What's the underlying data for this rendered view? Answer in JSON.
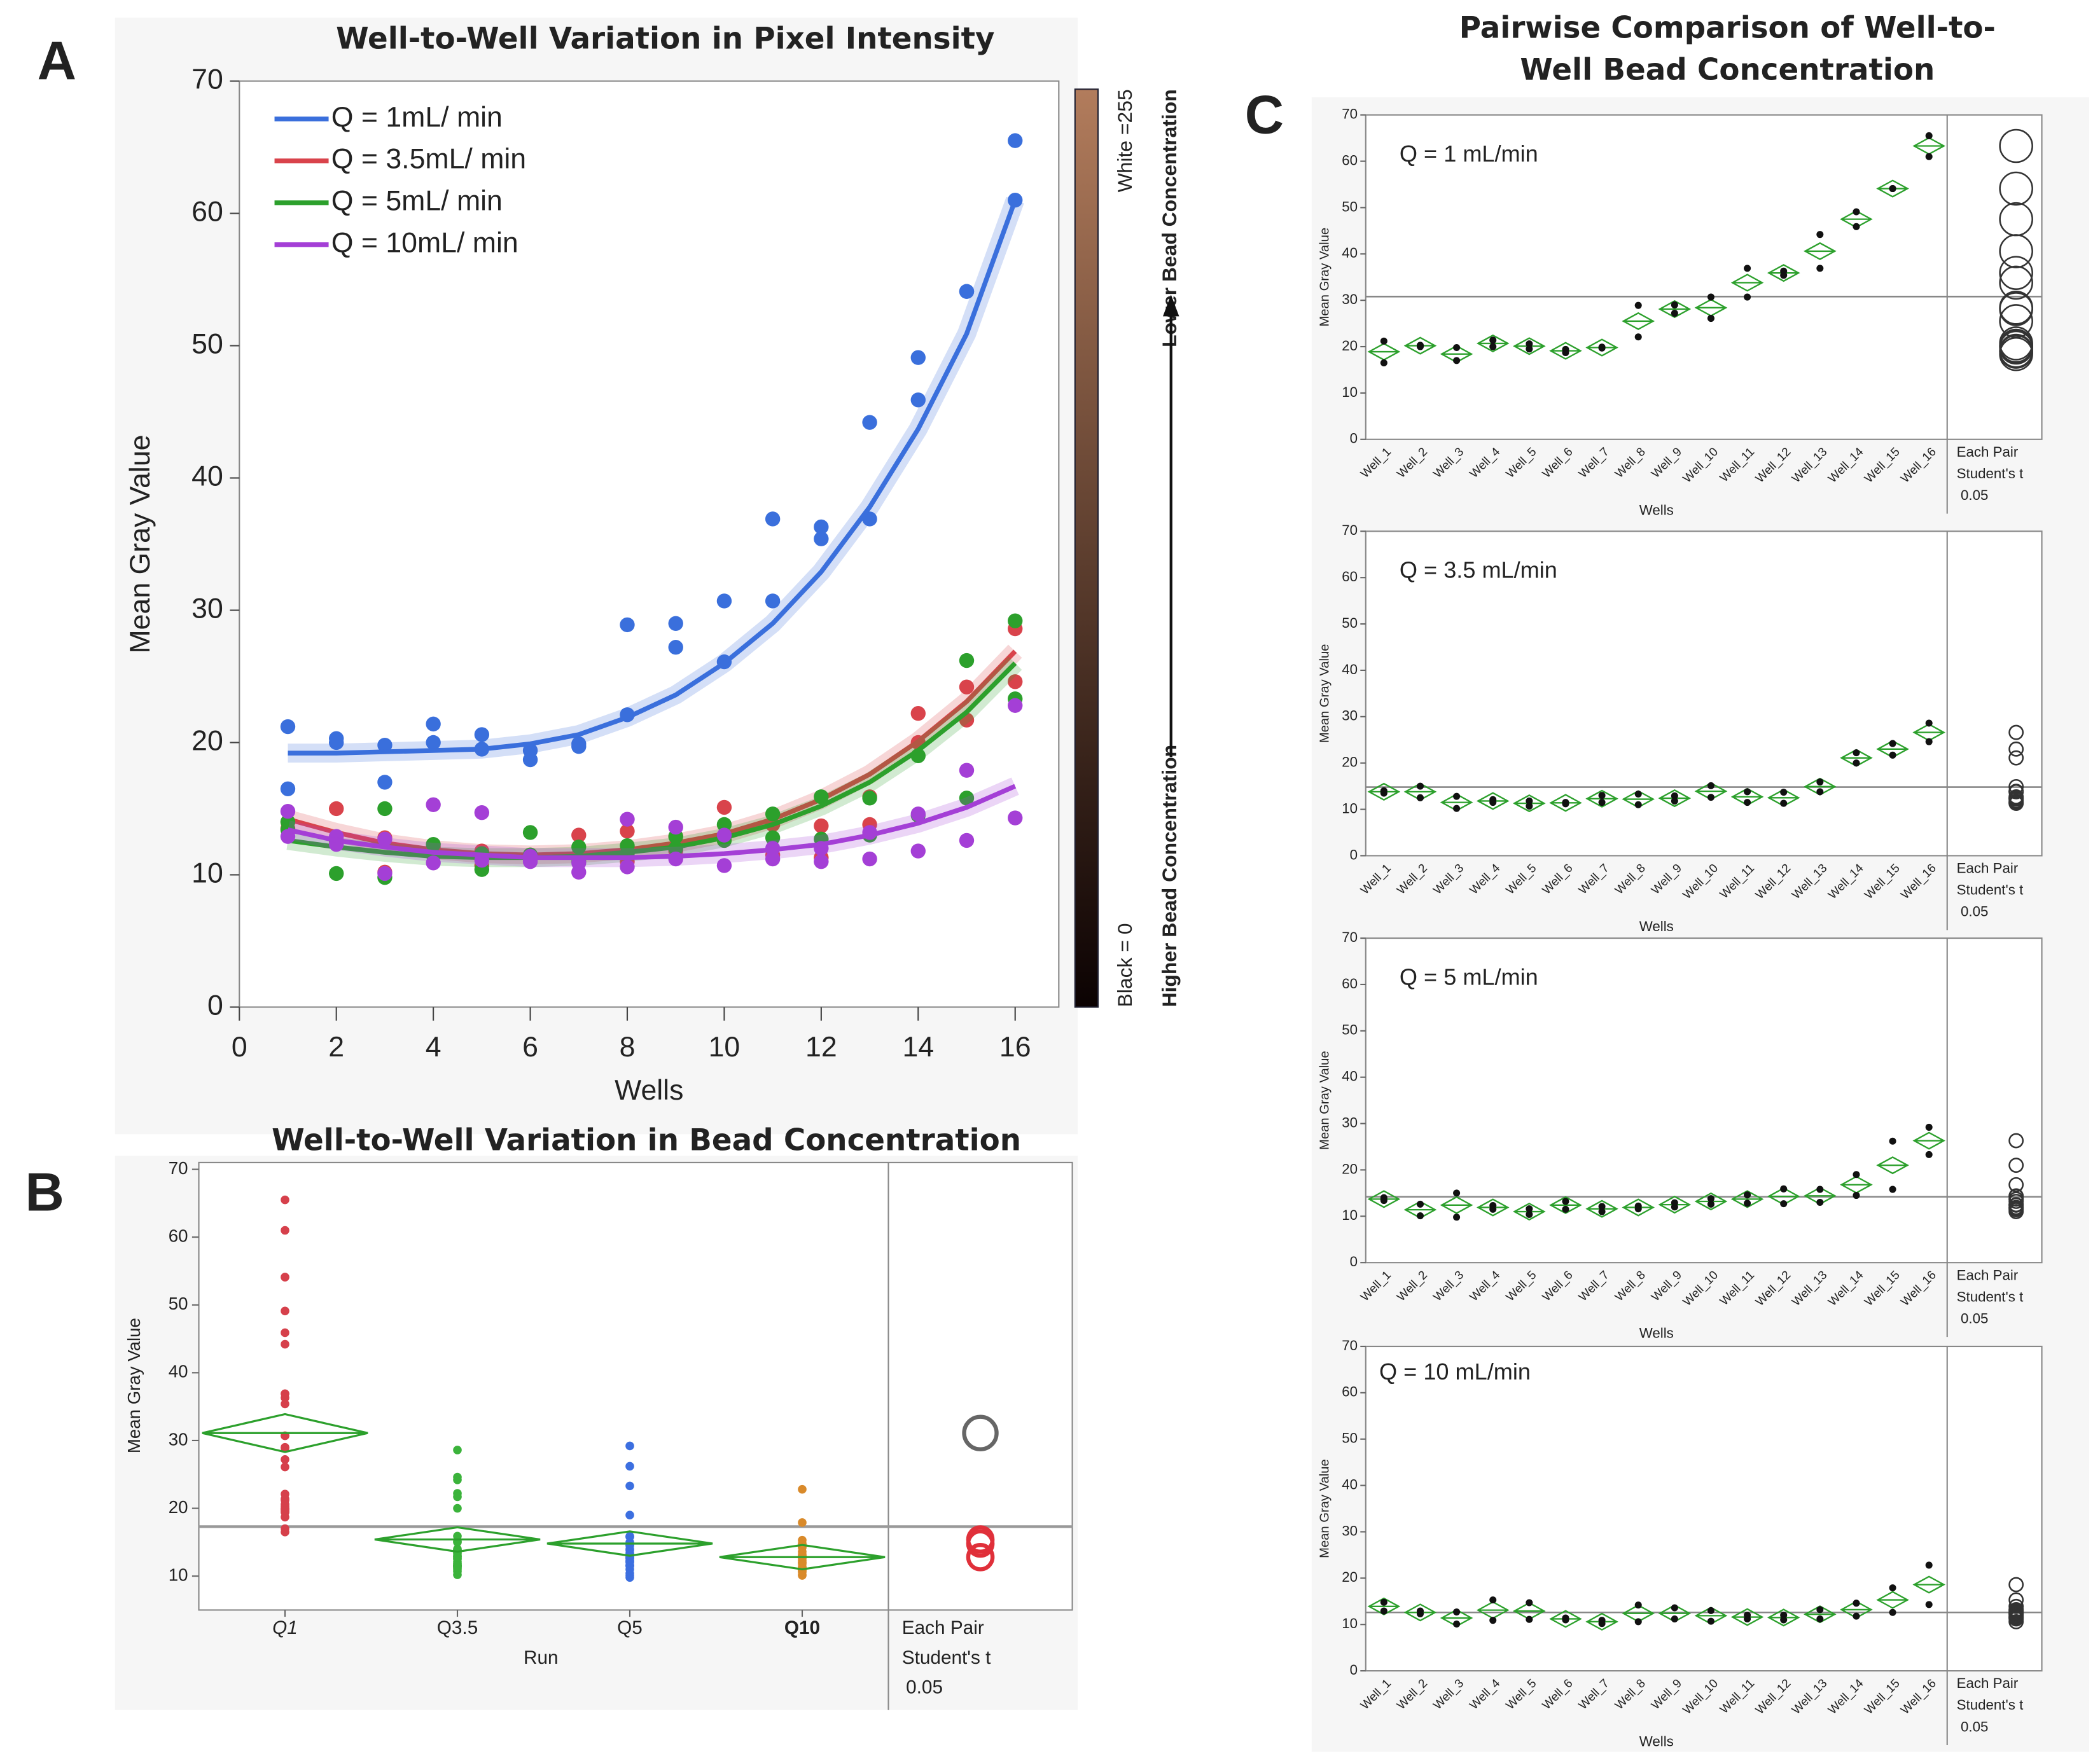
{
  "chart_data": [
    {
      "type": "scatter",
      "label": "A",
      "title": "Well-to-Well Variation in Pixel Intensity",
      "x_label": "Wells",
      "y_label": "Mean Gray Value",
      "x": [
        1,
        1,
        2,
        2,
        3,
        3,
        4,
        4,
        5,
        5,
        6,
        6,
        7,
        7,
        8,
        8,
        9,
        9,
        10,
        10,
        11,
        11,
        12,
        12,
        13,
        13,
        14,
        14,
        15,
        15,
        16,
        16
      ],
      "fit_x": [
        1,
        2,
        3,
        4,
        5,
        6,
        7,
        8,
        9,
        10,
        11,
        12,
        13,
        14,
        15,
        16
      ],
      "xlim": [
        0,
        16.9
      ],
      "xticks": [
        0,
        2,
        4,
        6,
        8,
        10,
        12,
        14,
        16
      ],
      "ylim": [
        0,
        70
      ],
      "yticks": [
        0,
        10,
        20,
        30,
        40,
        50,
        60,
        70
      ],
      "series": [
        {
          "name": "Q = 1mL/ min",
          "color": "#3a6fdc",
          "values": [
            21.2,
            16.5,
            20.3,
            20.0,
            19.8,
            17.0,
            21.4,
            20.0,
            20.6,
            19.5,
            19.4,
            18.7,
            19.9,
            19.7,
            28.9,
            22.1,
            29.0,
            27.2,
            30.7,
            26.1,
            36.9,
            30.7,
            36.3,
            35.4,
            44.2,
            36.9,
            49.1,
            45.9,
            54.1,
            54.1,
            65.5,
            61.0
          ],
          "fit": [
            19.2,
            19.2,
            19.3,
            19.4,
            19.5,
            19.9,
            20.6,
            21.9,
            23.6,
            26.0,
            29.0,
            32.9,
            37.8,
            43.7,
            50.9,
            61.0
          ]
        },
        {
          "name": "Q = 3.5mL/ min",
          "color": "#d9434b",
          "values": [
            14.0,
            13.5,
            15.0,
            12.5,
            12.8,
            10.2,
            12.1,
            11.5,
            11.8,
            10.7,
            11.5,
            11.2,
            13.0,
            11.5,
            13.3,
            11.0,
            12.9,
            11.8,
            15.1,
            12.6,
            13.8,
            11.5,
            13.7,
            11.3,
            15.9,
            13.8,
            22.2,
            20.0,
            24.2,
            21.7,
            28.6,
            24.6
          ],
          "fit": [
            14.2,
            13.2,
            12.4,
            11.9,
            11.6,
            11.5,
            11.6,
            11.9,
            12.4,
            13.1,
            14.2,
            15.7,
            17.6,
            20.1,
            23.1,
            26.9
          ]
        },
        {
          "name": "Q = 5mL/ min",
          "color": "#2ca02c",
          "values": [
            14.0,
            13.4,
            10.1,
            12.6,
            15.0,
            9.8,
            12.3,
            11.5,
            10.4,
            11.6,
            13.2,
            11.5,
            12.1,
            11.0,
            12.2,
            11.6,
            12.0,
            12.9,
            13.8,
            12.6,
            14.6,
            12.8,
            15.9,
            12.7,
            15.8,
            13.0,
            19.0,
            14.5,
            26.2,
            15.8,
            29.2,
            23.3
          ],
          "fit": [
            12.6,
            12.1,
            11.7,
            11.4,
            11.3,
            11.3,
            11.4,
            11.7,
            12.1,
            12.8,
            13.8,
            15.2,
            17.0,
            19.4,
            22.3,
            26.0
          ]
        },
        {
          "name": "Q = 10mL/ min",
          "color": "#a43fd6",
          "values": [
            14.8,
            12.9,
            12.9,
            12.3,
            12.7,
            10.1,
            15.3,
            10.9,
            14.7,
            11.1,
            11.4,
            11.0,
            10.9,
            10.2,
            14.2,
            10.6,
            13.6,
            11.2,
            13.0,
            10.7,
            12.0,
            11.2,
            12.0,
            11.0,
            13.2,
            11.2,
            14.6,
            11.8,
            17.9,
            12.6,
            22.8,
            14.3
          ],
          "fit": [
            13.4,
            12.6,
            12.1,
            11.7,
            11.5,
            11.3,
            11.3,
            11.3,
            11.4,
            11.6,
            11.9,
            12.3,
            13.0,
            13.9,
            15.1,
            16.7
          ]
        }
      ],
      "colorbar": {
        "top_value": "White =255",
        "top_label": "Lower Bead Concentration",
        "bottom_value": "Black = 0",
        "bottom_label": "Higher Bead Concentration",
        "colors": [
          "#b27c5c",
          "#0b0202"
        ]
      }
    },
    {
      "type": "oneway",
      "label": "B",
      "title": "Well-to-Well Variation in Bead Concentration",
      "x_label": "Run",
      "y_label": "Mean Gray Value",
      "categories": [
        "Q1",
        "Q3.5",
        "Q5",
        "Q10"
      ],
      "category_label_colors": [
        "#333333",
        "#e05560",
        "#e05560",
        "#e0303a"
      ],
      "dot_colors": [
        "#d6404b",
        "#3bb33b",
        "#3c6fe0",
        "#d98a2a"
      ],
      "means": [
        31.1,
        15.4,
        14.8,
        12.8
      ],
      "grand_mean": 17.3,
      "ylim": [
        5,
        71
      ],
      "yticks": [
        10,
        20,
        30,
        40,
        50,
        60,
        70
      ],
      "comparison": [
        "Each Pair",
        "Student's t",
        0.05
      ]
    },
    {
      "type": "pairwise",
      "label": "C",
      "title": "Pairwise Comparison of Well-to-Well Bead Concentration",
      "x_label": "Wells",
      "y_label": "Mean Gray Value",
      "categories": [
        "Well_1",
        "Well_2",
        "Well_3",
        "Well_4",
        "Well_5",
        "Well_6",
        "Well_7",
        "Well_8",
        "Well_9",
        "Well_10",
        "Well_11",
        "Well_12",
        "Well_13",
        "Well_14",
        "Well_15",
        "Well_16"
      ],
      "ylim": [
        0,
        70
      ],
      "yticks": [
        0,
        10,
        20,
        30,
        40,
        50,
        60,
        70
      ],
      "comparison": [
        "Each Pair",
        "Student's t",
        0.05
      ],
      "plots": [
        {
          "inset": "Q = 1 mL/min",
          "means": [
            18.9,
            20.2,
            18.4,
            20.7,
            20.1,
            19.1,
            19.8,
            25.5,
            28.1,
            28.4,
            33.8,
            35.9,
            40.6,
            47.5,
            54.1,
            63.3
          ],
          "grand_mean": 30.8
        },
        {
          "inset": "Q = 3.5 mL/min",
          "means": [
            13.8,
            13.8,
            11.5,
            11.8,
            11.3,
            11.4,
            12.3,
            12.2,
            12.4,
            13.9,
            12.7,
            12.5,
            14.9,
            21.1,
            23.0,
            26.6
          ],
          "grand_mean": 14.8
        },
        {
          "inset": "Q = 5 mL/min",
          "means": [
            13.7,
            11.4,
            12.4,
            11.9,
            11.0,
            12.4,
            11.6,
            11.9,
            12.5,
            13.2,
            13.7,
            14.3,
            14.4,
            16.8,
            21.0,
            26.3
          ],
          "grand_mean": 14.2
        },
        {
          "inset": "Q = 10 mL/min",
          "means": [
            13.9,
            12.6,
            11.4,
            13.1,
            12.9,
            11.2,
            10.6,
            12.4,
            12.4,
            11.9,
            11.6,
            11.5,
            12.2,
            13.2,
            15.3,
            18.6
          ],
          "grand_mean": 12.6
        }
      ]
    }
  ]
}
